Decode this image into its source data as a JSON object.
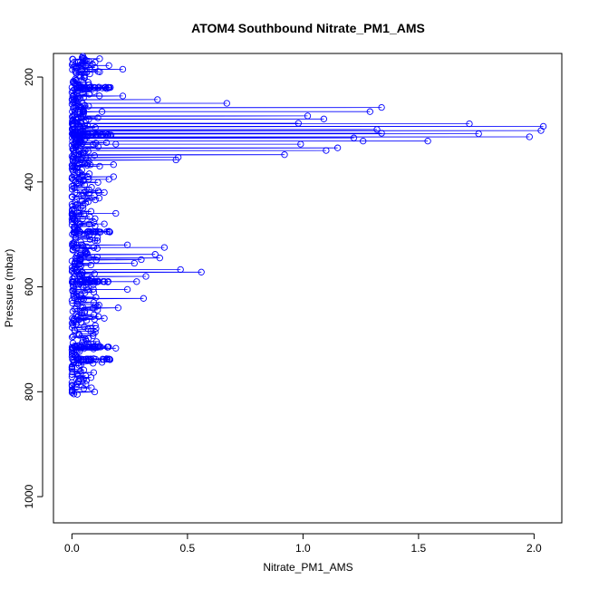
{
  "chart_data": {
    "type": "scatter",
    "title": "ATOM4 Southbound Nitrate_PM1_AMS",
    "xlabel": "Nitrate_PM1_AMS",
    "ylabel": "Pressure (mbar)",
    "xlim": [
      -0.08,
      2.12
    ],
    "ylim": [
      1050,
      155
    ],
    "y_reversed": true,
    "x_ticks": [
      0.0,
      0.5,
      1.0,
      1.5,
      2.0
    ],
    "x_tick_labels": [
      "0.0",
      "0.5",
      "1.0",
      "1.5",
      "2.0"
    ],
    "y_ticks": [
      200,
      400,
      600,
      800,
      1000
    ],
    "y_tick_labels": [
      "200",
      "400",
      "600",
      "800",
      "1000"
    ],
    "series_color": "#0000ff",
    "connected": true,
    "points_outliers": [
      [
        0.12,
        165
      ],
      [
        0.1,
        172
      ],
      [
        0.16,
        178
      ],
      [
        0.22,
        185
      ],
      [
        0.12,
        190
      ],
      [
        0.07,
        210
      ],
      [
        0.15,
        222
      ],
      [
        0.22,
        236
      ],
      [
        0.37,
        243
      ],
      [
        0.67,
        250
      ],
      [
        1.34,
        258
      ],
      [
        1.29,
        266
      ],
      [
        0.13,
        266
      ],
      [
        1.02,
        274
      ],
      [
        1.09,
        280
      ],
      [
        0.06,
        282
      ],
      [
        1.72,
        289
      ],
      [
        0.98,
        288
      ],
      [
        2.04,
        294
      ],
      [
        1.32,
        300
      ],
      [
        2.03,
        302
      ],
      [
        1.34,
        307
      ],
      [
        1.76,
        308
      ],
      [
        1.98,
        314
      ],
      [
        1.22,
        316
      ],
      [
        1.26,
        322
      ],
      [
        1.54,
        322
      ],
      [
        0.15,
        325
      ],
      [
        0.99,
        328
      ],
      [
        0.19,
        328
      ],
      [
        1.15,
        335
      ],
      [
        1.1,
        340
      ],
      [
        0.92,
        348
      ],
      [
        0.46,
        353
      ],
      [
        0.45,
        358
      ],
      [
        0.18,
        367
      ],
      [
        0.12,
        370
      ],
      [
        0.18,
        390
      ],
      [
        0.16,
        395
      ],
      [
        0.14,
        420
      ],
      [
        0.19,
        460
      ],
      [
        0.1,
        470
      ],
      [
        0.14,
        480
      ],
      [
        0.24,
        520
      ],
      [
        0.4,
        525
      ],
      [
        0.36,
        538
      ],
      [
        0.38,
        545
      ],
      [
        0.3,
        548
      ],
      [
        0.27,
        555
      ],
      [
        0.47,
        567
      ],
      [
        0.56,
        572
      ],
      [
        0.32,
        580
      ],
      [
        0.28,
        590
      ],
      [
        0.24,
        605
      ],
      [
        0.31,
        622
      ],
      [
        0.2,
        640
      ],
      [
        0.14,
        660
      ],
      [
        0.19,
        717
      ],
      [
        0.16,
        738
      ],
      [
        0.13,
        744
      ]
    ],
    "core_pressure_range": [
      160,
      805
    ],
    "core_value_range": [
      0.0,
      0.12
    ],
    "dense_bands_pressure": [
      220,
      310,
      495,
      590,
      715,
      738
    ],
    "dense_band_max_value": 0.17
  }
}
